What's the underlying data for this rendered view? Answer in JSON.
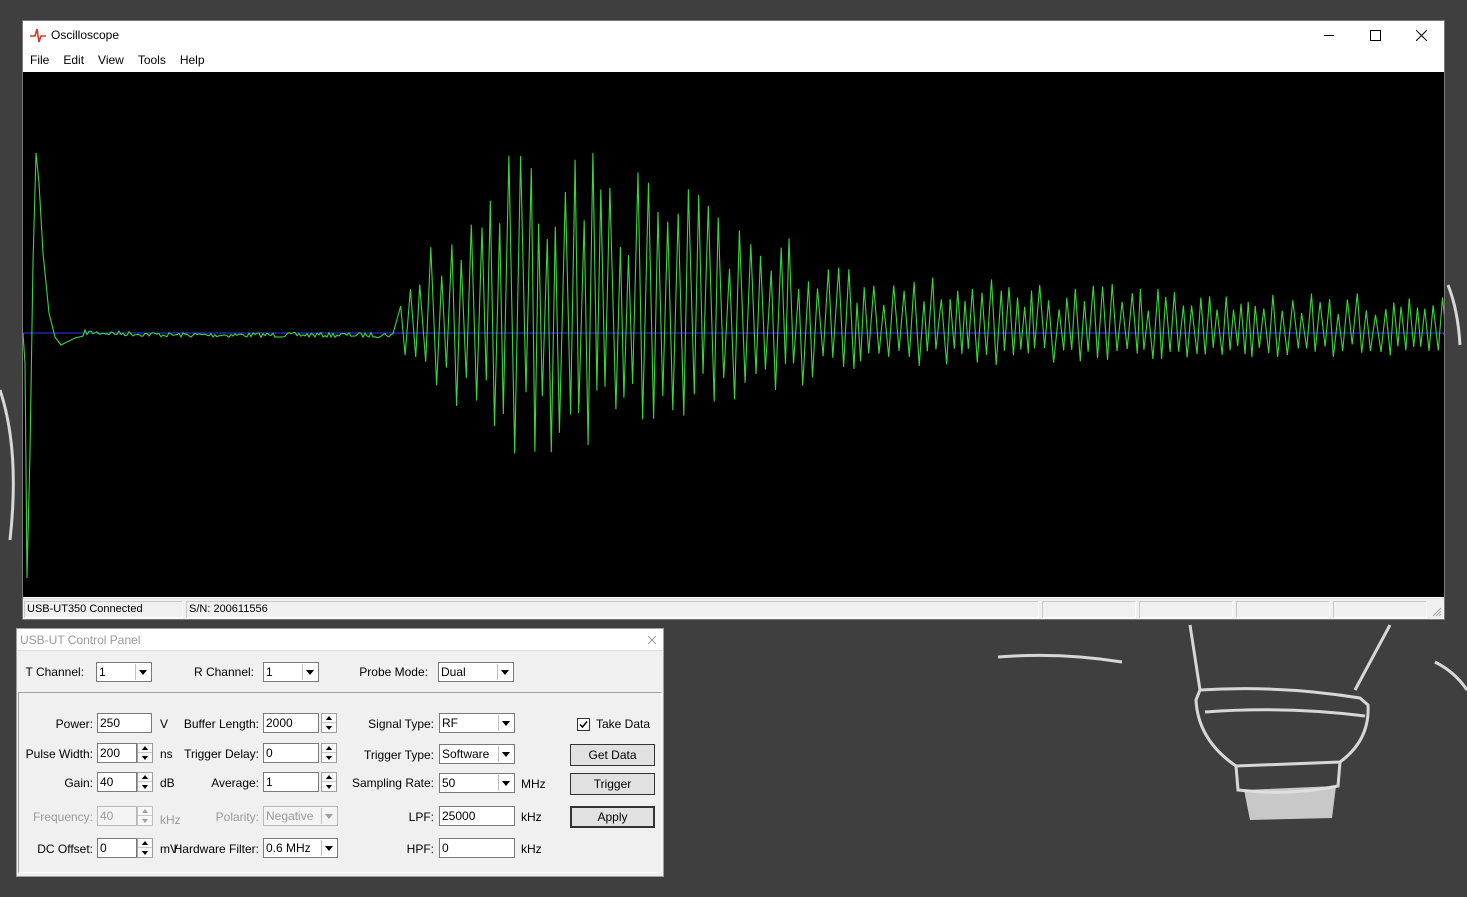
{
  "desktop": {
    "background": "#3a3a3a"
  },
  "oscilloscope": {
    "title": "Oscilloscope",
    "menu": [
      "File",
      "Edit",
      "View",
      "Tools",
      "Help"
    ],
    "display": {
      "background": "#000000",
      "trace_color": "#3cd43c",
      "baseline_color": "#2a3cff"
    },
    "status": {
      "connection": "USB-UT350 Connected",
      "serial": "S/N: 200611556"
    }
  },
  "control_panel": {
    "title": "USB-UT Control Panel",
    "t_channel": {
      "label": "T Channel:",
      "value": "1"
    },
    "r_channel": {
      "label": "R Channel:",
      "value": "1"
    },
    "probe_mode": {
      "label": "Probe Mode:",
      "value": "Dual"
    },
    "power": {
      "label": "Power:",
      "value": "250",
      "unit": "V"
    },
    "pulse_width": {
      "label": "Pulse Width:",
      "value": "200",
      "unit": "ns"
    },
    "gain": {
      "label": "Gain:",
      "value": "40",
      "unit": "dB"
    },
    "frequency": {
      "label": "Frequency:",
      "value": "40",
      "unit": "kHz"
    },
    "dc_offset": {
      "label": "DC Offset:",
      "value": "0",
      "unit": "mV"
    },
    "buffer_length": {
      "label": "Buffer Length:",
      "value": "2000"
    },
    "trigger_delay": {
      "label": "Trigger Delay:",
      "value": "0"
    },
    "average": {
      "label": "Average:",
      "value": "1"
    },
    "polarity": {
      "label": "Polarity:",
      "value": "Negative"
    },
    "hardware_filter": {
      "label": "Hardware Filter:",
      "value": "0.6 MHz"
    },
    "signal_type": {
      "label": "Signal Type:",
      "value": "RF"
    },
    "trigger_type": {
      "label": "Trigger Type:",
      "value": "Software"
    },
    "sampling_rate": {
      "label": "Sampling Rate:",
      "value": "50",
      "unit": "MHz"
    },
    "lpf": {
      "label": "LPF:",
      "value": "25000",
      "unit": "kHz"
    },
    "hpf": {
      "label": "HPF:",
      "value": "0",
      "unit": "kHz"
    },
    "take_data": {
      "label": "Take Data",
      "checked": true
    },
    "buttons": {
      "get_data": "Get Data",
      "trigger": "Trigger",
      "apply": "Apply"
    }
  }
}
